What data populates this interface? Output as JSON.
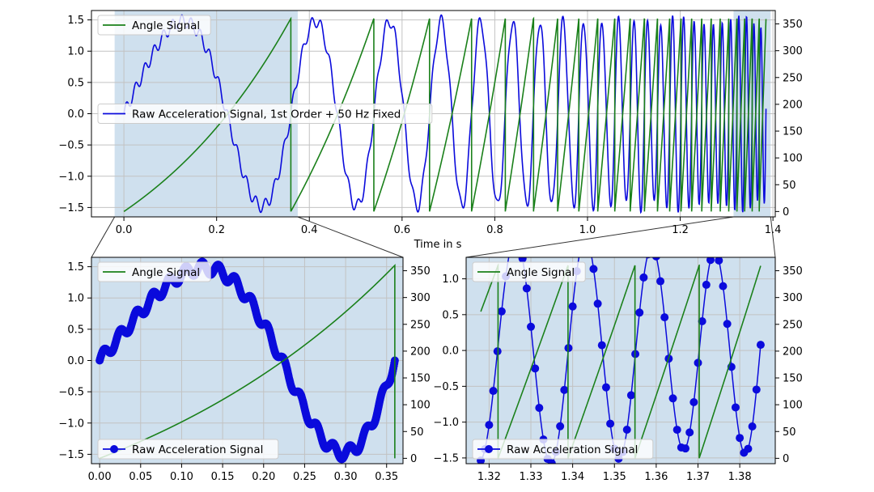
{
  "colors": {
    "signal": "#0b0bdc",
    "angle": "#1a801a",
    "highlight": "#cfe0ee",
    "grid": "#c2c2c2",
    "axis": "#000000",
    "connector": "#333333"
  },
  "xlabel": "Time in s",
  "chart_data": [
    {
      "id": "overview",
      "type": "line",
      "xlabel": "Time in s",
      "xlim": [
        -0.07,
        1.405
      ],
      "ylim": [
        -1.65,
        1.65
      ],
      "y2lim": [
        -10,
        375
      ],
      "xticks": [
        0.0,
        0.2,
        0.4,
        0.6,
        0.8,
        1.0,
        1.2,
        1.4
      ],
      "xtick_labels": [
        "0.0",
        "0.2",
        "0.4",
        "0.6",
        "0.8",
        "1.0",
        "1.2",
        "1.4"
      ],
      "yticks": [
        -1.5,
        -1.0,
        -0.5,
        0.0,
        0.5,
        1.0,
        1.5
      ],
      "ytick_labels": [
        "−1.5",
        "−1.0",
        "−0.5",
        "0.0",
        "0.5",
        "1.0",
        "1.5"
      ],
      "y2ticks": [
        0,
        50,
        100,
        150,
        200,
        250,
        300,
        350
      ],
      "y2tick_labels": [
        "0",
        "50",
        "100",
        "150",
        "200",
        "250",
        "300",
        "350"
      ],
      "grid": true,
      "highlight_spans": [
        [
          -0.02,
          0.375
        ],
        [
          1.315,
          1.395
        ]
      ],
      "legend_angle": {
        "label": "Angle Signal",
        "position": "upper-left"
      },
      "legend_signal": {
        "label": "Raw Acceleration Signal, 1st Order + 50 Hz Fixed",
        "position": "center-left"
      },
      "series": [
        {
          "name": "Raw Acceleration Signal, 1st Order + 50 Hz Fixed",
          "axis": "left",
          "color": "#0b0bdc",
          "x_range": [
            0.0,
            1.385
          ],
          "description": "sine wave, amplitude 1.5, instantaneous frequency increasing from about 1.4 Hz to about 15 Hz (phase equals angle signal) plus 50 Hz ripple of amplitude 0.1",
          "sample_points": [
            [
              0.0,
              0.0
            ],
            [
              0.15,
              1.5
            ],
            [
              0.3,
              -1.5
            ],
            [
              0.36,
              -0.1
            ],
            [
              1.32,
              -0.05
            ],
            [
              1.372,
              -1.5
            ],
            [
              1.385,
              0.05
            ]
          ]
        },
        {
          "name": "Angle Signal",
          "axis": "right",
          "color": "#1a801a",
          "x_range": [
            0.0,
            1.385
          ],
          "description": "sawtooth in degrees 0 to 360, resets at 0.36, 0.54, 0.68, 0.80, 0.90 s and continues faster",
          "reset_times": [
            0.36,
            0.54,
            0.68,
            0.8,
            0.9,
            0.99,
            1.07,
            1.14,
            1.2,
            1.26,
            1.315
          ]
        }
      ]
    },
    {
      "id": "zoom-left",
      "type": "line",
      "xlim": [
        -0.01,
        0.37
      ],
      "ylim": [
        -1.65,
        1.65
      ],
      "y2lim": [
        -10,
        375
      ],
      "xticks": [
        0.0,
        0.05,
        0.1,
        0.15,
        0.2,
        0.25,
        0.3,
        0.35
      ],
      "xtick_labels": [
        "0.00",
        "0.05",
        "0.10",
        "0.15",
        "0.20",
        "0.25",
        "0.30",
        "0.35"
      ],
      "yticks": [
        -1.5,
        -1.0,
        -0.5,
        0.0,
        0.5,
        1.0,
        1.5
      ],
      "ytick_labels": [
        "−1.5",
        "−1.0",
        "−0.5",
        "0.0",
        "0.5",
        "1.0",
        "1.5"
      ],
      "y2ticks": [
        0,
        50,
        100,
        150,
        200,
        250,
        300,
        350
      ],
      "y2tick_labels": [
        "0",
        "50",
        "100",
        "150",
        "200",
        "250",
        "300",
        "350"
      ],
      "grid": true,
      "background": "#cfe0ee",
      "legend_angle": {
        "label": "Angle Signal",
        "position": "upper-left"
      },
      "legend_signal": {
        "label": "Raw Acceleration Signal",
        "position": "lower-left"
      },
      "series": [
        {
          "name": "Raw Acceleration Signal",
          "marker": "circle",
          "axis": "left",
          "x_range": [
            0.0,
            0.36
          ]
        },
        {
          "name": "Angle Signal",
          "axis": "right",
          "x_range": [
            0.0,
            0.36
          ]
        }
      ]
    },
    {
      "id": "zoom-right",
      "type": "line",
      "xlim": [
        1.3145,
        1.3885
      ],
      "ylim": [
        -1.58,
        1.3
      ],
      "y2lim": [
        -10,
        375
      ],
      "xticks": [
        1.32,
        1.33,
        1.34,
        1.35,
        1.36,
        1.37,
        1.38
      ],
      "xtick_labels": [
        "1.32",
        "1.33",
        "1.34",
        "1.35",
        "1.36",
        "1.37",
        "1.38"
      ],
      "yticks": [
        -1.5,
        -1.0,
        -0.5,
        0.0,
        0.5,
        1.0
      ],
      "ytick_labels": [
        "−1.5",
        "−1.0",
        "−0.5",
        "0.0",
        "0.5",
        "1.0"
      ],
      "y2ticks": [
        0,
        50,
        100,
        150,
        200,
        250,
        300,
        350
      ],
      "y2tick_labels": [
        "0",
        "50",
        "100",
        "150",
        "200",
        "250",
        "300",
        "350"
      ],
      "grid": true,
      "background": "#cfe0ee",
      "legend_angle": {
        "label": "Angle Signal",
        "position": "upper-left"
      },
      "legend_signal": {
        "label": "Raw Acceleration Signal",
        "position": "lower-left"
      },
      "series": [
        {
          "name": "Raw Acceleration Signal",
          "marker": "circle",
          "axis": "left",
          "x_range": [
            1.318,
            1.385
          ]
        },
        {
          "name": "Angle Signal",
          "axis": "right",
          "x_range": [
            1.318,
            1.385
          ]
        }
      ]
    }
  ]
}
